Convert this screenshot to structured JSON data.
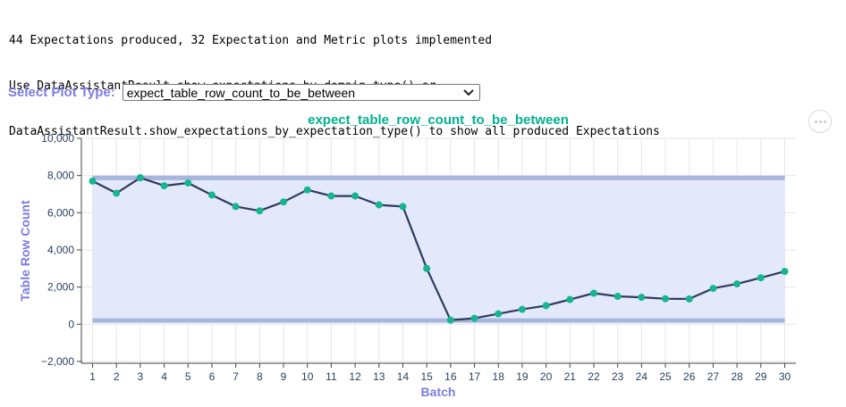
{
  "console": {
    "lines": [
      "44 Expectations produced, 32 Expectation and Metric plots implemented",
      "Use DataAssistantResult.show_expectations_by_domain_type() or",
      "DataAssistantResult.show_expectations_by_expectation_type() to show all produced Expectations"
    ]
  },
  "selector": {
    "label": "Select Plot Type:",
    "value": "expect_table_row_count_to_be_between"
  },
  "colors": {
    "accent_label": "#7c7ce6",
    "title": "#00b28e",
    "line": "#2e3b5e",
    "marker": "#16b58f",
    "band_fill": "#e3e9fb",
    "band_edge": "#a7b6de"
  },
  "more_button_icon": "more-dots-icon",
  "chart_data": {
    "type": "line",
    "title": "expect_table_row_count_to_be_between",
    "xlabel": "Batch",
    "ylabel": "Table Row Count",
    "x": [
      1,
      2,
      3,
      4,
      5,
      6,
      7,
      8,
      9,
      10,
      11,
      12,
      13,
      14,
      15,
      16,
      17,
      18,
      19,
      20,
      21,
      22,
      23,
      24,
      25,
      26,
      27,
      28,
      29,
      30
    ],
    "y": [
      7700,
      7050,
      7880,
      7450,
      7600,
      6950,
      6330,
      6100,
      6580,
      7230,
      6900,
      6900,
      6420,
      6330,
      3000,
      220,
      320,
      560,
      800,
      1000,
      1330,
      1670,
      1500,
      1450,
      1370,
      1360,
      1930,
      2170,
      2500,
      2840
    ],
    "band": {
      "lower": 200,
      "upper": 7870
    },
    "ylim": [
      -2100,
      10000
    ],
    "xlim": [
      1,
      30
    ],
    "yticks": [
      10000,
      8000,
      6000,
      4000,
      2000,
      0,
      -2000
    ],
    "ytick_labels": [
      "10,000",
      "8,000",
      "6,000",
      "4,000",
      "2,000",
      "0",
      "−2,000"
    ],
    "xticks": [
      "1",
      "2",
      "3",
      "4",
      "5",
      "6",
      "7",
      "8",
      "9",
      "10",
      "11",
      "12",
      "13",
      "14",
      "15",
      "16",
      "17",
      "18",
      "19",
      "20",
      "21",
      "22",
      "23",
      "24",
      "25",
      "26",
      "27",
      "28",
      "29",
      "30"
    ],
    "grid": true,
    "legend": "none"
  }
}
